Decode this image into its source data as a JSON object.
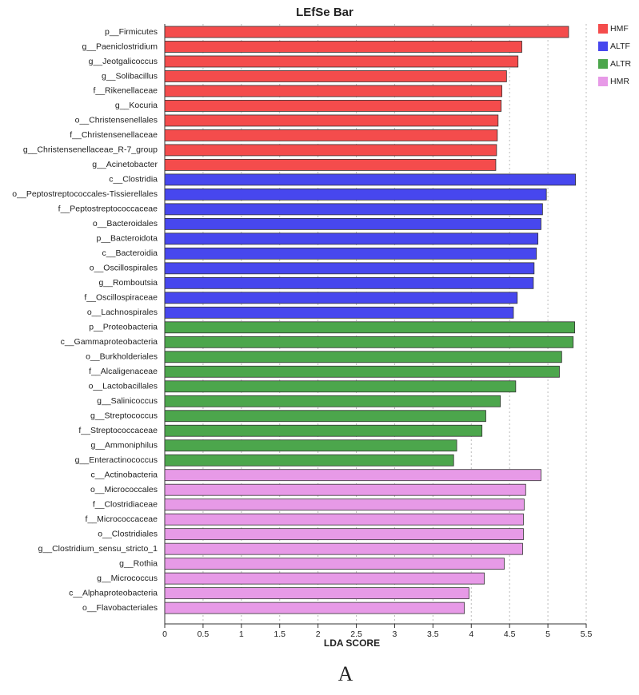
{
  "chart_data": {
    "type": "barh_grouped",
    "title": "LEfSe Bar",
    "xlabel": "LDA SCORE",
    "caption": "A",
    "xlim": [
      0,
      5.5
    ],
    "xticks": [
      0,
      0.5,
      1,
      1.5,
      2,
      2.5,
      3,
      3.5,
      4,
      4.5,
      5,
      5.5
    ],
    "grid": true,
    "legend": "top-right",
    "series": [
      {
        "name": "HMF",
        "color": "#f44c4c",
        "categories": [
          "p__Firmicutes",
          "g__Paeniclostridium",
          "g__Jeotgalicoccus",
          "g__Solibacillus",
          "f__Rikenellaceae",
          "g__Kocuria",
          "o__Christensenellales",
          "f__Christensenellaceae",
          "g__Christensenellaceae_R-7_group",
          "g__Acinetobacter"
        ],
        "values": [
          5.27,
          4.66,
          4.61,
          4.46,
          4.4,
          4.39,
          4.35,
          4.34,
          4.33,
          4.32
        ]
      },
      {
        "name": "ALTF",
        "color": "#4747ee",
        "categories": [
          "c__Clostridia",
          "o__Peptostreptococcales-Tissierellales",
          "f__Peptostreptococcaceae",
          "o__Bacteroidales",
          "p__Bacteroidota",
          "c__Bacteroidia",
          "o__Oscillospirales",
          "g__Romboutsia",
          "f__Oscillospiraceae",
          "o__Lachnospirales"
        ],
        "values": [
          5.36,
          4.98,
          4.93,
          4.91,
          4.87,
          4.85,
          4.82,
          4.81,
          4.6,
          4.55
        ]
      },
      {
        "name": "ALTR",
        "color": "#4ca64c",
        "categories": [
          "p__Proteobacteria",
          "c__Gammaproteobacteria",
          "o__Burkholderiales",
          "f__Alcaligenaceae",
          "o__Lactobacillales",
          "g__Salinicoccus",
          "g__Streptococcus",
          "f__Streptococcaceae",
          "g__Ammoniphilus",
          "g__Enteractinococcus"
        ],
        "values": [
          5.35,
          5.33,
          5.18,
          5.15,
          4.58,
          4.38,
          4.19,
          4.14,
          3.81,
          3.77
        ]
      },
      {
        "name": "HMR",
        "color": "#e79ae7",
        "categories": [
          "c__Actinobacteria",
          "o__Micrococcales",
          "f__Clostridiaceae",
          "f__Micrococcaceae",
          "o__Clostridiales",
          "g__Clostridium_sensu_stricto_1",
          "g__Rothia",
          "g__Micrococcus",
          "c__Alphaproteobacteria",
          "o__Flavobacteriales"
        ],
        "values": [
          4.91,
          4.71,
          4.69,
          4.68,
          4.68,
          4.67,
          4.43,
          4.17,
          3.97,
          3.91
        ]
      }
    ]
  }
}
